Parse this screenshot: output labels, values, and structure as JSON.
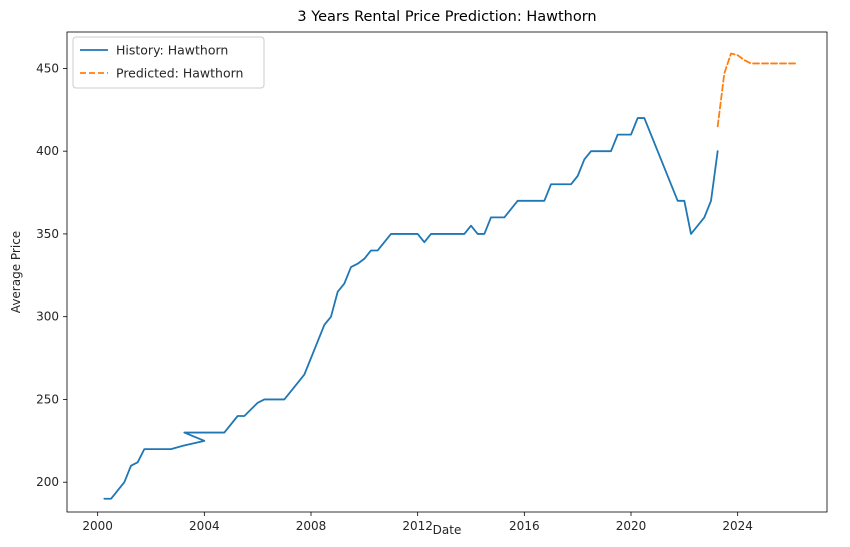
{
  "chart_data": {
    "type": "line",
    "title": "3 Years Rental Price Prediction: Hawthorn",
    "xlabel": "Date",
    "ylabel": "Average Price",
    "xlim": [
      1998.85,
      2027.35
    ],
    "ylim": [
      182,
      472
    ],
    "x_ticks": [
      2000,
      2004,
      2008,
      2012,
      2016,
      2020,
      2024
    ],
    "y_ticks": [
      200,
      250,
      300,
      350,
      400,
      450
    ],
    "grid": false,
    "legend_position": "top-left",
    "series": [
      {
        "name": "History: Hawthorn",
        "color": "#1f77b4",
        "style": "solid",
        "x": [
          2000.25,
          2000.5,
          2001.0,
          2001.25,
          2001.5,
          2001.75,
          2002.75,
          2003.2,
          2004.0,
          2003.25,
          2004.75,
          2005.25,
          2005.5,
          2006.0,
          2006.25,
          2007.0,
          2007.75,
          2008.5,
          2008.75,
          2009.0,
          2009.25,
          2009.5,
          2009.75,
          2010.0,
          2010.25,
          2010.5,
          2011.0,
          2011.5,
          2012.0,
          2012.25,
          2012.5,
          2013.0,
          2013.5,
          2013.75,
          2014.0,
          2014.25,
          2014.5,
          2014.75,
          2015.25,
          2015.75,
          2016.0,
          2016.5,
          2016.75,
          2017.0,
          2017.5,
          2017.75,
          2018.0,
          2018.25,
          2018.5,
          2019.0,
          2019.25,
          2019.5,
          2019.75,
          2020.0,
          2020.25,
          2020.5,
          2021.75,
          2022.0,
          2022.25,
          2022.75,
          2023.0,
          2023.25
        ],
        "values": [
          190,
          190,
          200,
          210,
          212,
          220,
          220,
          222,
          225,
          230,
          230,
          240,
          240,
          248,
          250,
          250,
          265,
          295,
          300,
          315,
          320,
          330,
          332,
          335,
          340,
          340,
          350,
          350,
          350,
          345,
          350,
          350,
          350,
          350,
          355,
          350,
          350,
          360,
          360,
          370,
          370,
          370,
          370,
          380,
          380,
          380,
          385,
          395,
          400,
          400,
          400,
          410,
          410,
          410,
          420,
          420,
          370,
          370,
          350,
          360,
          370,
          400
        ]
      },
      {
        "name": "Predicted: Hawthorn",
        "color": "#ff7f0e",
        "style": "dashed",
        "x": [
          2023.25,
          2023.5,
          2023.75,
          2024.0,
          2024.25,
          2024.5,
          2024.75,
          2025.0,
          2025.5,
          2026.0,
          2026.25
        ],
        "values": [
          415,
          447,
          459,
          458,
          455,
          453,
          453,
          453,
          453,
          453,
          453
        ]
      }
    ]
  }
}
